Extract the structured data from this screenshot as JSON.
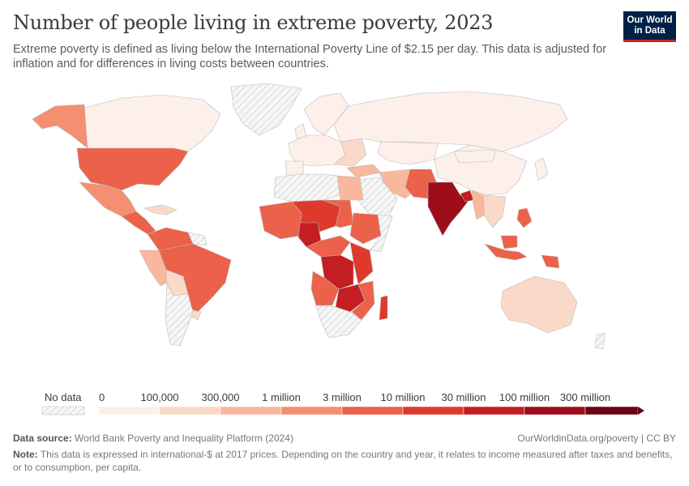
{
  "header": {
    "title": "Number of people living in extreme poverty, 2023",
    "subtitle": "Extreme poverty is defined as living below the International Poverty Line of $2.15 per day. This data is adjusted for inflation and for differences in living costs between countries."
  },
  "logo": {
    "line1": "Our World",
    "line2": "in Data"
  },
  "legend": {
    "no_data_label": "No data",
    "bins": [
      "0",
      "100,000",
      "300,000",
      "1 million",
      "3 million",
      "10 million",
      "30 million",
      "100 million",
      "300 million"
    ],
    "colors": [
      "#fdf0ea",
      "#fbd9c8",
      "#f9b79d",
      "#f48f72",
      "#ec6149",
      "#dd3a2d",
      "#c41d22",
      "#9e0d1a",
      "#6a0411"
    ]
  },
  "footer": {
    "source_label": "Data source:",
    "source_text": "World Bank Poverty and Inequality Platform (2024)",
    "attribution": "OurWorldinData.org/poverty | CC BY",
    "note_label": "Note:",
    "note_text": "This data is expressed in international-$ at 2017 prices. Depending on the country and year, it relates to income measured after taxes and benefits, or to consumption, per capita."
  }
}
